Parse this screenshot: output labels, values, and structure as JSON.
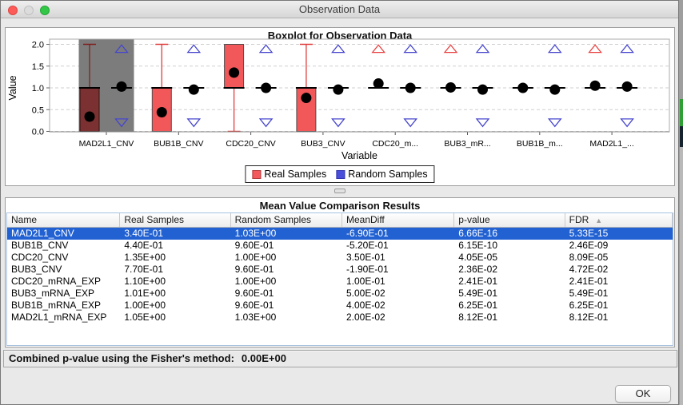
{
  "window": {
    "title": "Observation Data"
  },
  "chart": {
    "panel_title": "Boxplot for Observation Data",
    "legend": [
      {
        "label": "Real Samples",
        "color": "#F2585A"
      },
      {
        "label": "Random Samples",
        "color": "#4A4FDB"
      }
    ]
  },
  "chart_data": {
    "type": "boxplot",
    "title": "Boxplot for Observation Data",
    "xlabel": "Variable",
    "ylabel": "Value",
    "ylim": [
      0.0,
      2.0
    ],
    "yticks": [
      "2.0",
      "1.5",
      "1.0",
      "0.5",
      "0.0"
    ],
    "ytick_values": [
      2.0,
      1.5,
      1.0,
      0.5,
      0.0
    ],
    "grid": true,
    "legend_position": "bottom",
    "series": [
      {
        "name": "Real Samples",
        "color": "#F2585A"
      },
      {
        "name": "Random Samples",
        "color": "#4A4FDB"
      }
    ],
    "variables": [
      {
        "label": "MAD2L1_CNV",
        "selected": true,
        "real": {
          "mean": 0.34,
          "median": 1.0,
          "box_low": 0.0,
          "box_high": 1.0,
          "whisker_low": 1.0,
          "whisker_high": 2.0
        },
        "random": {
          "mean": 1.03,
          "median": 1.0,
          "max_marker": 1.9,
          "min_marker": 0.2
        }
      },
      {
        "label": "BUB1B_CNV",
        "selected": false,
        "real": {
          "mean": 0.44,
          "median": 1.0,
          "box_low": 0.0,
          "box_high": 1.0,
          "whisker_low": 1.0,
          "whisker_high": 2.0
        },
        "random": {
          "mean": 0.96,
          "median": 1.0,
          "max_marker": 1.9,
          "min_marker": 0.2
        }
      },
      {
        "label": "CDC20_CNV",
        "selected": false,
        "real": {
          "mean": 1.35,
          "median": 1.0,
          "box_low": 1.0,
          "box_high": 2.0,
          "whisker_low": 0.0,
          "whisker_high": 1.0
        },
        "random": {
          "mean": 1.0,
          "median": 1.0,
          "max_marker": 1.9,
          "min_marker": 0.2
        }
      },
      {
        "label": "BUB3_CNV",
        "selected": false,
        "real": {
          "mean": 0.77,
          "median": 1.0,
          "box_low": 0.0,
          "box_high": 1.0,
          "whisker_low": 1.0,
          "whisker_high": 2.0
        },
        "random": {
          "mean": 0.96,
          "median": 1.0,
          "max_marker": 1.9,
          "min_marker": 0.2
        }
      },
      {
        "label": "CDC20_m...",
        "selected": false,
        "real": {
          "mean": 1.1,
          "median": 1.0,
          "max_marker": 1.9
        },
        "random": {
          "mean": 1.0,
          "median": 1.0,
          "max_marker": 1.9,
          "min_marker": 0.2
        }
      },
      {
        "label": "BUB3_mR...",
        "selected": false,
        "real": {
          "mean": 1.01,
          "median": 1.0,
          "max_marker": 1.9
        },
        "random": {
          "mean": 0.96,
          "median": 1.0,
          "max_marker": 1.9,
          "min_marker": 0.2
        }
      },
      {
        "label": "BUB1B_m...",
        "selected": false,
        "real": {
          "mean": 1.0,
          "median": 1.0
        },
        "random": {
          "mean": 0.96,
          "median": 1.0,
          "max_marker": 1.9,
          "min_marker": 0.2
        }
      },
      {
        "label": "MAD2L1_...",
        "selected": false,
        "real": {
          "mean": 1.05,
          "median": 1.0,
          "max_marker": 1.9
        },
        "random": {
          "mean": 1.03,
          "median": 1.0,
          "max_marker": 1.9,
          "min_marker": 0.2
        }
      }
    ],
    "marker_colors": {
      "real_triangle": "#E84343",
      "random_triangle": "#4646CE",
      "mean_dot": "#000000"
    },
    "selected_band_color": "#7C7C7C",
    "selected_box_color": "#7B3131"
  },
  "table": {
    "panel_title": "Mean Value Comparison Results",
    "columns": [
      {
        "label": "Name"
      },
      {
        "label": "Real Samples"
      },
      {
        "label": "Random Samples"
      },
      {
        "label": "MeanDiff"
      },
      {
        "label": "p-value"
      },
      {
        "label": "FDR",
        "sort": "ascending"
      }
    ],
    "selected_row": 0,
    "rows": [
      [
        "MAD2L1_CNV",
        "3.40E-01",
        "1.03E+00",
        "-6.90E-01",
        "6.66E-16",
        "5.33E-15"
      ],
      [
        "BUB1B_CNV",
        "4.40E-01",
        "9.60E-01",
        "-5.20E-01",
        "6.15E-10",
        "2.46E-09"
      ],
      [
        "CDC20_CNV",
        "1.35E+00",
        "1.00E+00",
        "3.50E-01",
        "4.05E-05",
        "8.09E-05"
      ],
      [
        "BUB3_CNV",
        "7.70E-01",
        "9.60E-01",
        "-1.90E-01",
        "2.36E-02",
        "4.72E-02"
      ],
      [
        "CDC20_mRNA_EXP",
        "1.10E+00",
        "1.00E+00",
        "1.00E-01",
        "2.41E-01",
        "2.41E-01"
      ],
      [
        "BUB3_mRNA_EXP",
        "1.01E+00",
        "9.60E-01",
        "5.00E-02",
        "5.49E-01",
        "5.49E-01"
      ],
      [
        "BUB1B_mRNA_EXP",
        "1.00E+00",
        "9.60E-01",
        "4.00E-02",
        "6.25E-01",
        "6.25E-01"
      ],
      [
        "MAD2L1_mRNA_EXP",
        "1.05E+00",
        "1.03E+00",
        "2.00E-02",
        "8.12E-01",
        "8.12E-01"
      ]
    ]
  },
  "status": {
    "label": "Combined p-value using the Fisher's method:",
    "value": "0.00E+00"
  },
  "footer": {
    "ok_label": "OK"
  }
}
